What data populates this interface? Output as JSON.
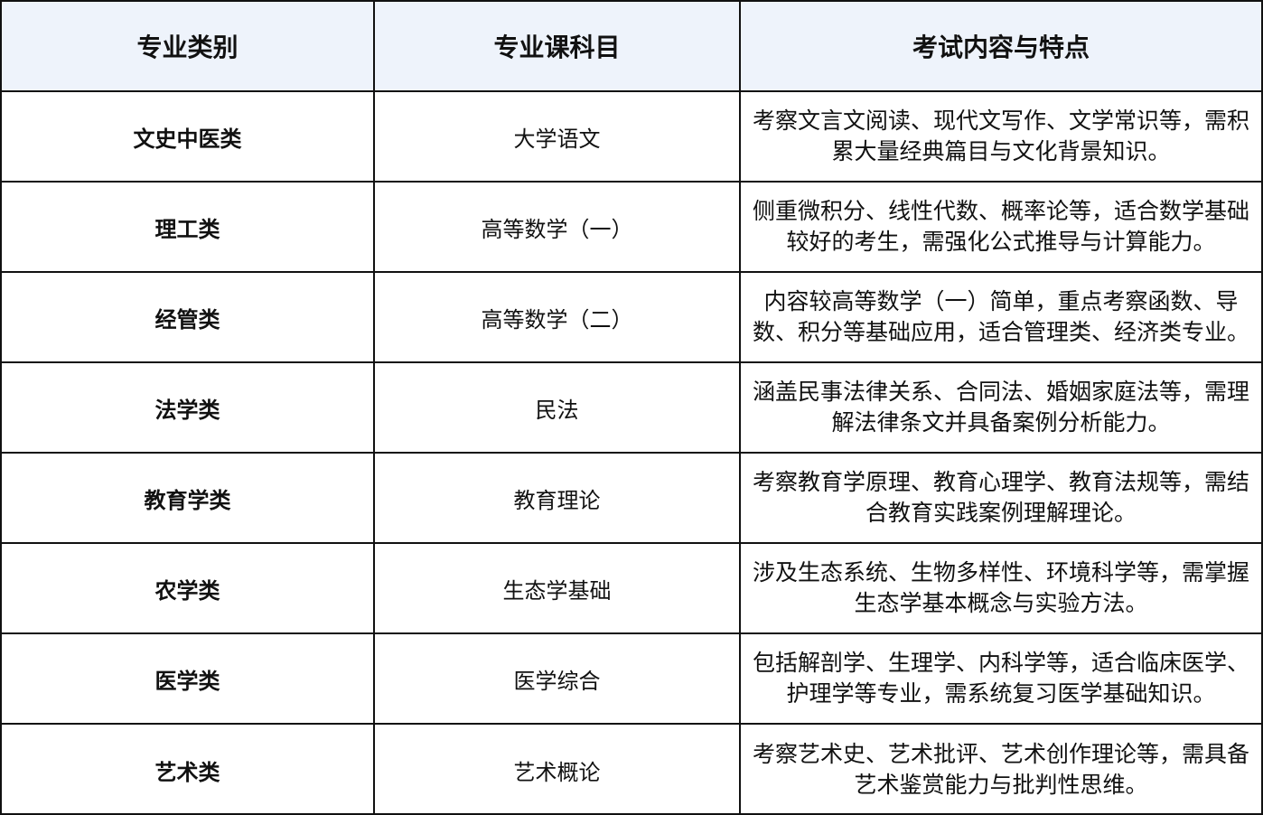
{
  "table": {
    "headers": [
      "专业类别",
      "专业课科目",
      "考试内容与特点"
    ],
    "header_bg": "#eef3fb",
    "rows": [
      {
        "category": "文史中医类",
        "subject": "大学语文",
        "content": "考察文言文阅读、现代文写作、文学常识等，需积累大量经典篇目与文化背景知识。"
      },
      {
        "category": "理工类",
        "subject": "高等数学（一）",
        "content": "侧重微积分、线性代数、概率论等，适合数学基础较好的考生，需强化公式推导与计算能力。"
      },
      {
        "category": "经管类",
        "subject": "高等数学（二）",
        "content": "内容较高等数学（一）简单，重点考察函数、导数、积分等基础应用，适合管理类、经济类专业。"
      },
      {
        "category": "法学类",
        "subject": "民法",
        "content": "涵盖民事法律关系、合同法、婚姻家庭法等，需理解法律条文并具备案例分析能力。"
      },
      {
        "category": "教育学类",
        "subject": "教育理论",
        "content": "考察教育学原理、教育心理学、教育法规等，需结合教育实践案例理解理论。"
      },
      {
        "category": "农学类",
        "subject": "生态学基础",
        "content": "涉及生态系统、生物多样性、环境科学等，需掌握生态学基本概念与实验方法。"
      },
      {
        "category": "医学类",
        "subject": "医学综合",
        "content": "包括解剖学、生理学、内科学等，适合临床医学、护理学等专业，需系统复习医学基础知识。"
      },
      {
        "category": "艺术类",
        "subject": "艺术概论",
        "content": "考察艺术史、艺术批评、艺术创作理论等，需具备艺术鉴赏能力与批判性思维。"
      }
    ]
  }
}
